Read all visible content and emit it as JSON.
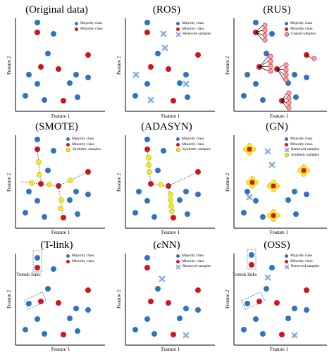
{
  "colors": {
    "majority": "#2e74c0",
    "minority": "#d4141c",
    "synthetic": "#f4ec22",
    "removed": "#9ec0e6",
    "copied": "#f4a6ae",
    "box": "#3a6fc0"
  },
  "axis": {
    "x_label": "Feature 1",
    "y_label": "Feature 2"
  },
  "legend": {
    "majority": "Majority class",
    "minority": "Minority class",
    "removed": "Removed samples",
    "copied": "Copied samples",
    "synthetic": "Synthetic samples"
  },
  "annotation": {
    "tomek": "Tomek links"
  },
  "panels": [
    {
      "id": "original",
      "title": "(Original data)",
      "legend": [
        "majority",
        "minority"
      ]
    },
    {
      "id": "ros",
      "title": "(ROS)",
      "legend": [
        "majority",
        "minority",
        "removed"
      ]
    },
    {
      "id": "rus",
      "title": "(RUS)",
      "legend": [
        "majority",
        "minority",
        "copied"
      ]
    },
    {
      "id": "smote",
      "title": "(SMOTE)",
      "legend": [
        "majority",
        "minority",
        "synthetic"
      ]
    },
    {
      "id": "adasyn",
      "title": "(ADASYN)",
      "legend": [
        "majority",
        "minority",
        "synthetic"
      ]
    },
    {
      "id": "gn",
      "title": "(GN)",
      "legend": [
        "majority",
        "minority",
        "removed",
        "synthetic"
      ]
    },
    {
      "id": "tlink",
      "title": "(T-link)",
      "legend": [
        "majority",
        "minority"
      ],
      "tomek": true
    },
    {
      "id": "cnn",
      "title_prefix": "",
      "title_italic": "c",
      "title_rest": "NN)",
      "title_open": "(",
      "legend": [
        "majority",
        "minority",
        "removed"
      ]
    },
    {
      "id": "oss",
      "title": "(OSS)",
      "legend": [
        "majority",
        "minority",
        "removed"
      ],
      "tomek": true
    }
  ]
}
